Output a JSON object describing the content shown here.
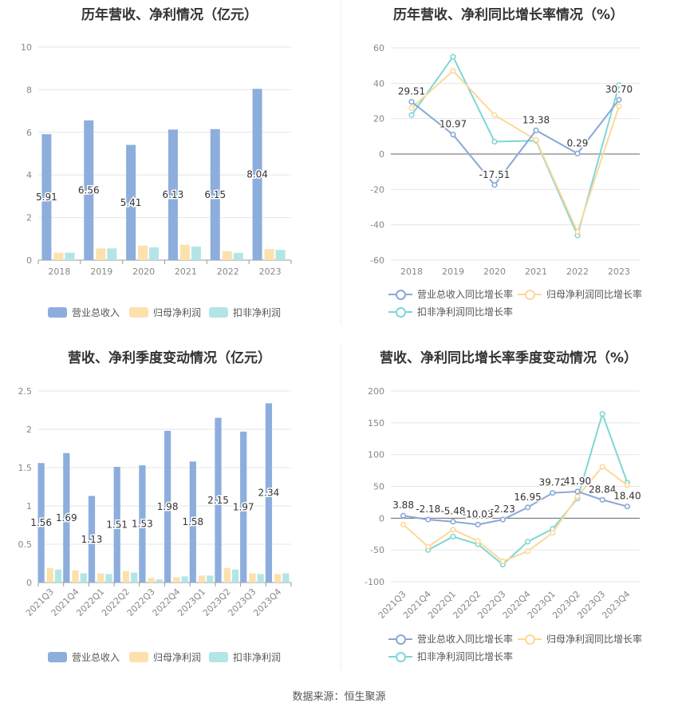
{
  "source": "数据来源：恒生聚源",
  "colors": {
    "c1": "#8daedc",
    "c2": "#fce1ad",
    "c3": "#b3e5e7",
    "l1": "#8aa8d6",
    "l2": "#fdd89a",
    "l3": "#7fd6d6"
  },
  "chart_data": [
    {
      "type": "bar",
      "title": "历年营收、净利情况（亿元）",
      "categories": [
        "2018",
        "2019",
        "2020",
        "2021",
        "2022",
        "2023"
      ],
      "ylim": [
        0,
        10
      ],
      "yticks": [
        "0",
        "2",
        "4",
        "6",
        "8",
        "10"
      ],
      "series": [
        {
          "name": "营业总收入",
          "values": [
            5.91,
            6.56,
            5.41,
            6.13,
            6.15,
            8.04
          ],
          "labels": [
            "5.91",
            "6.56",
            "5.41",
            "6.13",
            "6.15",
            "8.04"
          ]
        },
        {
          "name": "归母净利润",
          "values": [
            0.35,
            0.55,
            0.68,
            0.72,
            0.42,
            0.52
          ]
        },
        {
          "name": "扣非净利润",
          "values": [
            0.35,
            0.55,
            0.6,
            0.64,
            0.34,
            0.48
          ]
        }
      ]
    },
    {
      "type": "line",
      "title": "历年营收、净利同比增长率情况（%）",
      "categories": [
        "2018",
        "2019",
        "2020",
        "2021",
        "2022",
        "2023"
      ],
      "ylim": [
        -60,
        60
      ],
      "yticks": [
        "60",
        "40",
        "20",
        "0",
        "-20",
        "-40",
        "-60"
      ],
      "series": [
        {
          "name": "营业总收入同比增长率",
          "values": [
            29.51,
            10.97,
            -17.51,
            13.38,
            0.29,
            30.7
          ],
          "labels": [
            "29.51",
            "10.97",
            "-17.51",
            "13.38",
            "0.29",
            "30.70"
          ]
        },
        {
          "name": "归母净利润同比增长率",
          "values": [
            26,
            47,
            22,
            8,
            -44,
            27
          ]
        },
        {
          "name": "扣非净利润同比增长率",
          "values": [
            22,
            55,
            7,
            7.5,
            -46,
            39
          ]
        }
      ]
    },
    {
      "type": "bar",
      "title": "营收、净利季度变动情况（亿元）",
      "categories": [
        "2021Q3",
        "2021Q4",
        "2022Q1",
        "2022Q2",
        "2022Q3",
        "2022Q4",
        "2023Q1",
        "2023Q2",
        "2023Q3",
        "2023Q4"
      ],
      "ylim": [
        0,
        2.5
      ],
      "yticks": [
        "0",
        "0.5",
        "1",
        "1.5",
        "2",
        "2.5"
      ],
      "series": [
        {
          "name": "营业总收入",
          "values": [
            1.56,
            1.69,
            1.13,
            1.51,
            1.53,
            1.98,
            1.58,
            2.15,
            1.97,
            2.34
          ],
          "labels": [
            "1.56",
            "1.69",
            "1.13",
            "1.51",
            "1.53",
            "1.98",
            "1.58",
            "2.15",
            "1.97",
            "2.34"
          ]
        },
        {
          "name": "归母净利润",
          "values": [
            0.19,
            0.16,
            0.12,
            0.15,
            0.06,
            0.07,
            0.09,
            0.19,
            0.12,
            0.11
          ]
        },
        {
          "name": "扣非净利润",
          "values": [
            0.17,
            0.12,
            0.11,
            0.13,
            0.04,
            0.08,
            0.09,
            0.17,
            0.11,
            0.12
          ]
        }
      ]
    },
    {
      "type": "line",
      "title": "营收、净利同比增长率季度变动情况（%）",
      "categories": [
        "2021Q3",
        "2021Q4",
        "2022Q1",
        "2022Q2",
        "2022Q3",
        "2022Q4",
        "2023Q1",
        "2023Q2",
        "2023Q3",
        "2023Q4"
      ],
      "ylim": [
        -100,
        200
      ],
      "yticks": [
        "200",
        "150",
        "100",
        "50",
        "0",
        "-50",
        "-100"
      ],
      "series": [
        {
          "name": "营业总收入同比增长率",
          "values": [
            3.88,
            -2.18,
            -5.48,
            -10.03,
            -2.23,
            16.95,
            39.72,
            41.9,
            28.84,
            18.4
          ],
          "labels": [
            "3.88",
            "-2.18",
            "-5.48",
            "-10.03",
            "-2.23",
            "16.95",
            "39.72",
            "41.90",
            "28.84",
            "18.40"
          ]
        },
        {
          "name": "归母净利润同比增长率",
          "values": [
            -10,
            -45,
            -18,
            -36,
            -68,
            -52,
            -23,
            34,
            81,
            52
          ]
        },
        {
          "name": "扣非净利润同比增长率",
          "values": [
            null,
            -50,
            -29,
            -41,
            -73,
            -37,
            -17,
            31,
            164,
            56
          ]
        }
      ]
    }
  ]
}
